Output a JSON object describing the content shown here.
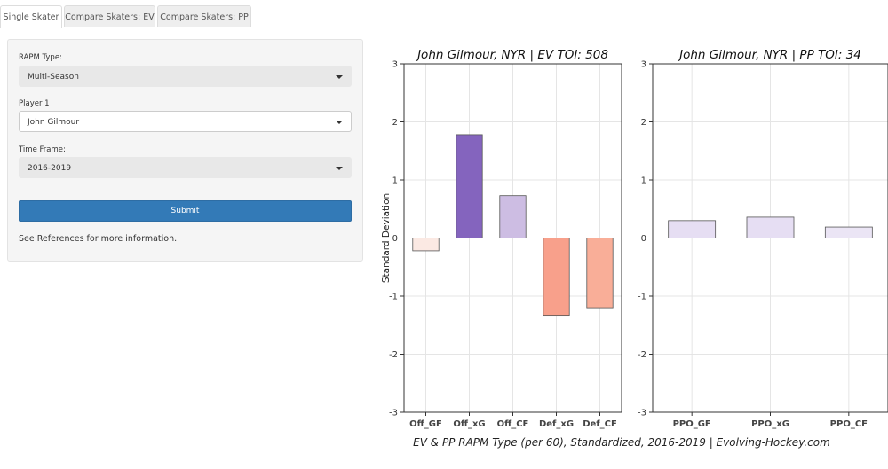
{
  "tabs": [
    {
      "label": "Single Skater",
      "active": true
    },
    {
      "label": "Compare Skaters: EV",
      "active": false
    },
    {
      "label": "Compare Skaters: PP",
      "active": false
    }
  ],
  "sidebar": {
    "rapm_type": {
      "label": "RAPM Type:",
      "value": "Multi-Season"
    },
    "player1": {
      "label": "Player 1",
      "value": "John Gilmour"
    },
    "time_frame": {
      "label": "Time Frame:",
      "value": "2016-2019"
    },
    "submit_label": "Submit",
    "note": "See References for more information."
  },
  "chart_data": [
    {
      "type": "bar",
      "title": "John Gilmour, NYR  |  EV TOI: 508",
      "ylabel": "Standard Deviation",
      "ylim": [
        -3,
        3
      ],
      "yticks": [
        "-3",
        "-2",
        "-1",
        "0",
        "1",
        "2",
        "3"
      ],
      "grid": true,
      "categories": [
        "Off_GF",
        "Off_xG",
        "Off_CF",
        "Def_xG",
        "Def_CF"
      ],
      "values": [
        -0.22,
        1.78,
        0.73,
        -1.33,
        -1.2
      ],
      "colors": [
        "#fbe9e3",
        "#8464be",
        "#cdbde3",
        "#f8a08b",
        "#f9ae98"
      ]
    },
    {
      "type": "bar",
      "title": "John Gilmour, NYR  |  PP TOI: 34",
      "ylabel": "",
      "ylim": [
        -3,
        3
      ],
      "yticks": [
        "-3",
        "-2",
        "-1",
        "0",
        "1",
        "2",
        "3"
      ],
      "grid": true,
      "categories": [
        "PPO_GF",
        "PPO_xG",
        "PPO_CF"
      ],
      "values": [
        0.3,
        0.36,
        0.19
      ],
      "colors": [
        "#e6def3",
        "#e6def3",
        "#ebe5f5"
      ]
    }
  ],
  "caption": "EV & PP RAPM Type (per 60), Standardized, 2016-2019    |    Evolving-Hockey.com"
}
